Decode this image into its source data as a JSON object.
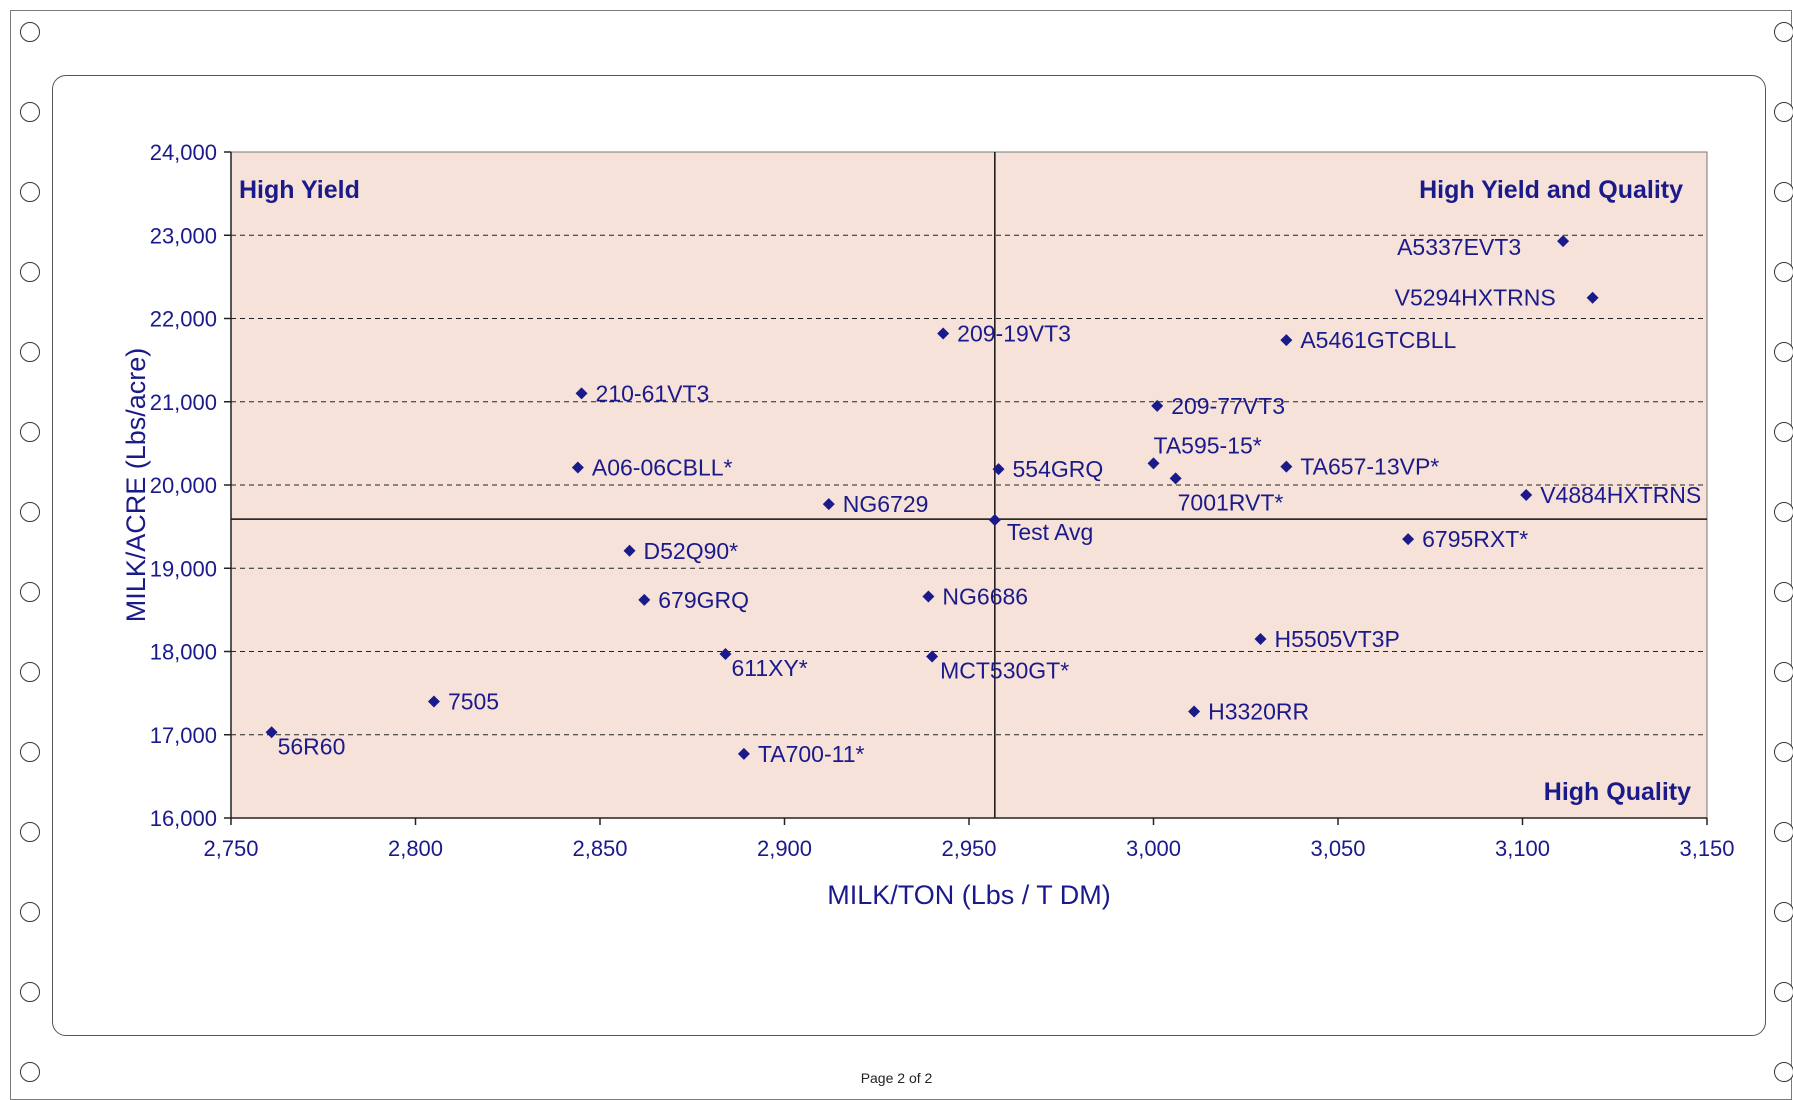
{
  "page": {
    "footer": "Page 2 of 2"
  },
  "chart_data": {
    "type": "scatter",
    "title": "",
    "xlabel": "MILK/TON (Lbs / T DM)",
    "ylabel": "MILK/ACRE (Lbs/acre)",
    "xlim": [
      2750,
      3150
    ],
    "ylim": [
      16000,
      24000
    ],
    "x_ticks": [
      2750,
      2800,
      2850,
      2900,
      2950,
      3000,
      3050,
      3100,
      3150
    ],
    "x_tick_labels": [
      "2,750",
      "2,800",
      "2,850",
      "2,900",
      "2,950",
      "3,000",
      "3,050",
      "3,100",
      "3,150"
    ],
    "y_ticks": [
      16000,
      17000,
      18000,
      19000,
      20000,
      21000,
      22000,
      23000,
      24000
    ],
    "y_tick_labels": [
      "16,000",
      "17,000",
      "18,000",
      "19,000",
      "20,000",
      "21,000",
      "22,000",
      "23,000",
      "24,000"
    ],
    "grid": "horizontal dashed",
    "reference_lines": {
      "x": 2957,
      "y": 19590
    },
    "quadrant_labels": {
      "top_left": "High Yield",
      "top_right": "High Yield and Quality",
      "bottom_right": "High Quality"
    },
    "colors": {
      "plot_bg": "#f6e2d9",
      "marker": "#1a1a8a",
      "text": "#1a1a8a"
    },
    "points": [
      {
        "label": "A5337EVT3",
        "x": 3111,
        "y": 22930
      },
      {
        "label": "V5294HXTRNS",
        "x": 3119,
        "y": 22250
      },
      {
        "label": "A5461GTCBLL",
        "x": 3036,
        "y": 21740
      },
      {
        "label": "209-19VT3",
        "x": 2943,
        "y": 21820
      },
      {
        "label": "210-61VT3",
        "x": 2845,
        "y": 21100
      },
      {
        "label": "209-77VT3",
        "x": 3001,
        "y": 20950
      },
      {
        "label": "TA595-15*",
        "x": 3000,
        "y": 20260
      },
      {
        "label": "A06-06CBLL*",
        "x": 2844,
        "y": 20210
      },
      {
        "label": "554GRQ",
        "x": 2958,
        "y": 20190
      },
      {
        "label": "TA657-13VP*",
        "x": 3036,
        "y": 20220
      },
      {
        "label": "7001RVT*",
        "x": 3006,
        "y": 20080
      },
      {
        "label": "V4884HXTRNS",
        "x": 3101,
        "y": 19880
      },
      {
        "label": "NG6729",
        "x": 2912,
        "y": 19770
      },
      {
        "label": "Test Avg",
        "x": 2957,
        "y": 19580
      },
      {
        "label": "6795RXT*",
        "x": 3069,
        "y": 19350
      },
      {
        "label": "D52Q90*",
        "x": 2858,
        "y": 19210
      },
      {
        "label": "679GRQ",
        "x": 2862,
        "y": 18620
      },
      {
        "label": "NG6686",
        "x": 2939,
        "y": 18660
      },
      {
        "label": "H5505VT3P",
        "x": 3029,
        "y": 18150
      },
      {
        "label": "611XY*",
        "x": 2884,
        "y": 17970
      },
      {
        "label": "MCT530GT*",
        "x": 2940,
        "y": 17940
      },
      {
        "label": "7505",
        "x": 2805,
        "y": 17400
      },
      {
        "label": "H3320RR",
        "x": 3011,
        "y": 17280
      },
      {
        "label": "56R60",
        "x": 2761,
        "y": 17030
      },
      {
        "label": "TA700-11*",
        "x": 2889,
        "y": 16770
      }
    ]
  }
}
